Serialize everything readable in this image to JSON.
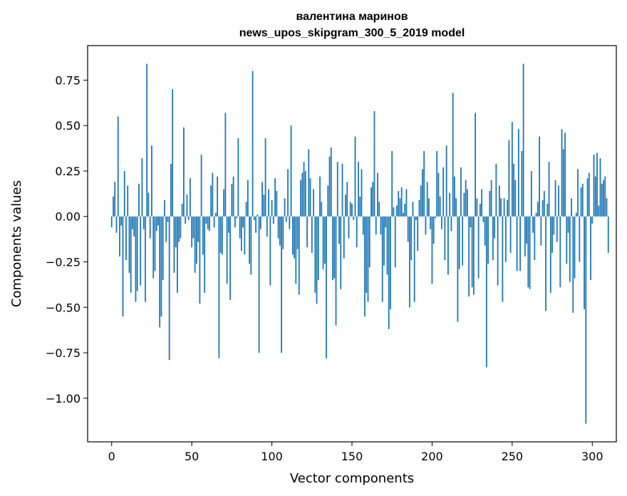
{
  "chart_data": {
    "type": "bar",
    "title": "валентина маринов",
    "subtitle": "news_upos_skipgram_300_5_2019 model",
    "xlabel": "Vector components",
    "ylabel": "Components values",
    "xlim": [
      -15,
      315
    ],
    "ylim": [
      -1.24,
      0.94
    ],
    "xticks": [
      0,
      50,
      100,
      150,
      200,
      250,
      300
    ],
    "yticks": [
      -1.0,
      -0.75,
      -0.5,
      -0.25,
      0.0,
      0.25,
      0.5,
      0.75
    ],
    "ytick_labels": [
      "−1.00",
      "−0.75",
      "−0.50",
      "−0.25",
      "0.00",
      "0.25",
      "0.50",
      "0.75"
    ],
    "xtick_labels": [
      "0",
      "50",
      "100",
      "150",
      "200",
      "250",
      "300"
    ],
    "bar_color": "#1f77b4",
    "grid": false,
    "values": [
      -0.06,
      0.11,
      0.19,
      -0.09,
      0.55,
      -0.22,
      -0.05,
      -0.55,
      0.25,
      -0.24,
      0.17,
      -0.31,
      -0.42,
      -0.07,
      -0.11,
      -0.47,
      -0.41,
      0.18,
      -0.38,
      0.32,
      -0.07,
      -0.47,
      0.84,
      0.13,
      -0.12,
      0.39,
      -0.34,
      -0.3,
      -0.08,
      -0.05,
      -0.61,
      -0.55,
      -0.35,
      0.09,
      -0.14,
      -0.03,
      -0.79,
      0.29,
      0.7,
      -0.31,
      -0.17,
      -0.42,
      -0.14,
      -0.12,
      0.07,
      0.49,
      -0.04,
      0.12,
      -0.02,
      0.21,
      -0.17,
      -0.12,
      -0.31,
      -0.26,
      -0.14,
      -0.48,
      0.34,
      -0.21,
      -0.42,
      -0.04,
      -0.07,
      -0.08,
      0.17,
      0.24,
      -0.06,
      0.02,
      0.22,
      -0.78,
      -0.2,
      -0.21,
      0.15,
      0.57,
      -0.37,
      -0.09,
      -0.46,
      0.18,
      0.22,
      -0.06,
      -0.01,
      0.43,
      -0.12,
      -0.19,
      -0.06,
      -0.21,
      0.08,
      0.2,
      -0.26,
      -0.32,
      0.8,
      -0.02,
      -0.09,
      0.01,
      -0.75,
      -0.07,
      0.19,
      0.12,
      0.43,
      -0.11,
      0.15,
      -0.38,
      0.09,
      -0.04,
      0.21,
      0.14,
      -0.12,
      -0.16,
      -0.75,
      -0.18,
      0.1,
      -0.03,
      0.26,
      -0.07,
      0.5,
      -0.21,
      -0.23,
      -0.37,
      -0.18,
      -0.43,
      0.2,
      0.24,
      0.3,
      0.25,
      -0.17,
      0.37,
      0.21,
      -0.2,
      0.15,
      -0.42,
      -0.48,
      -0.35,
      0.22,
      0.08,
      -0.29,
      -0.26,
      -0.78,
      0.17,
      0.33,
      0.38,
      -0.35,
      -0.34,
      -0.6,
      0.3,
      -0.15,
      -0.4,
      0.29,
      -0.23,
      0.12,
      0.19,
      -0.12,
      0.08,
      0.07,
      -0.02,
      0.44,
      -0.17,
      0.3,
      0.11,
      0.26,
      -0.1,
      -0.55,
      -0.42,
      -0.47,
      -0.28,
      0.16,
      0.19,
      0.58,
      -0.1,
      0.24,
      0.08,
      -0.1,
      -0.47,
      -0.27,
      -0.06,
      -0.32,
      -0.62,
      -0.51,
      0.36,
      0.05,
      -0.28,
      0.06,
      0.14,
      0.1,
      0.16,
      0.02,
      0.07,
      0.15,
      -0.14,
      -0.5,
      -0.24,
      0.08,
      -0.47,
      -0.02,
      -0.19,
      0.09,
      0.17,
      0.26,
      0.36,
      -0.1,
      0.19,
      0.1,
      -0.07,
      -0.37,
      -0.15,
      -0.01,
      0.36,
      0.24,
      0.11,
      -0.07,
      0.27,
      -0.24,
      0.39,
      -0.32,
      0.13,
      -0.08,
      0.68,
      0.22,
      0.1,
      -0.58,
      -0.29,
      0.27,
      -0.27,
      0.13,
      0.2,
      0.15,
      -0.44,
      -0.06,
      -0.39,
      -0.43,
      0.57,
      0.1,
      -0.34,
      0.07,
      0.15,
      -0.03,
      -0.16,
      -0.83,
      -0.26,
      0.14,
      0.2,
      -0.24,
      -0.12,
      0.29,
      -0.38,
      0.17,
      0.1,
      -0.47,
      0.1,
      -0.25,
      0.09,
      0.42,
      -0.2,
      0.52,
      0.29,
      0.2,
      -0.3,
      0.48,
      -0.3,
      0.36,
      0.84,
      -0.22,
      -0.15,
      -0.39,
      -0.4,
      0.25,
      -0.09,
      -0.24,
      0.02,
      0.08,
      0.44,
      -0.16,
      0.09,
      0.14,
      -0.52,
      0.07,
      0.3,
      -0.42,
      -0.2,
      -0.1,
      0.2,
      -0.14,
      0.17,
      -0.39,
      0.48,
      0.37,
      0.46,
      -0.26,
      -0.09,
      -0.36,
      0.1,
      -0.53,
      -0.34,
      0.02,
      0.26,
      -0.25,
      0.16,
      0.18,
      -0.51,
      -1.14,
      0.21,
      0.24,
      -0.35,
      -0.04,
      0.34,
      0.22,
      0.35,
      0.06,
      0.32,
      0.18,
      0.2,
      0.22,
      0.1,
      -0.2
    ]
  }
}
